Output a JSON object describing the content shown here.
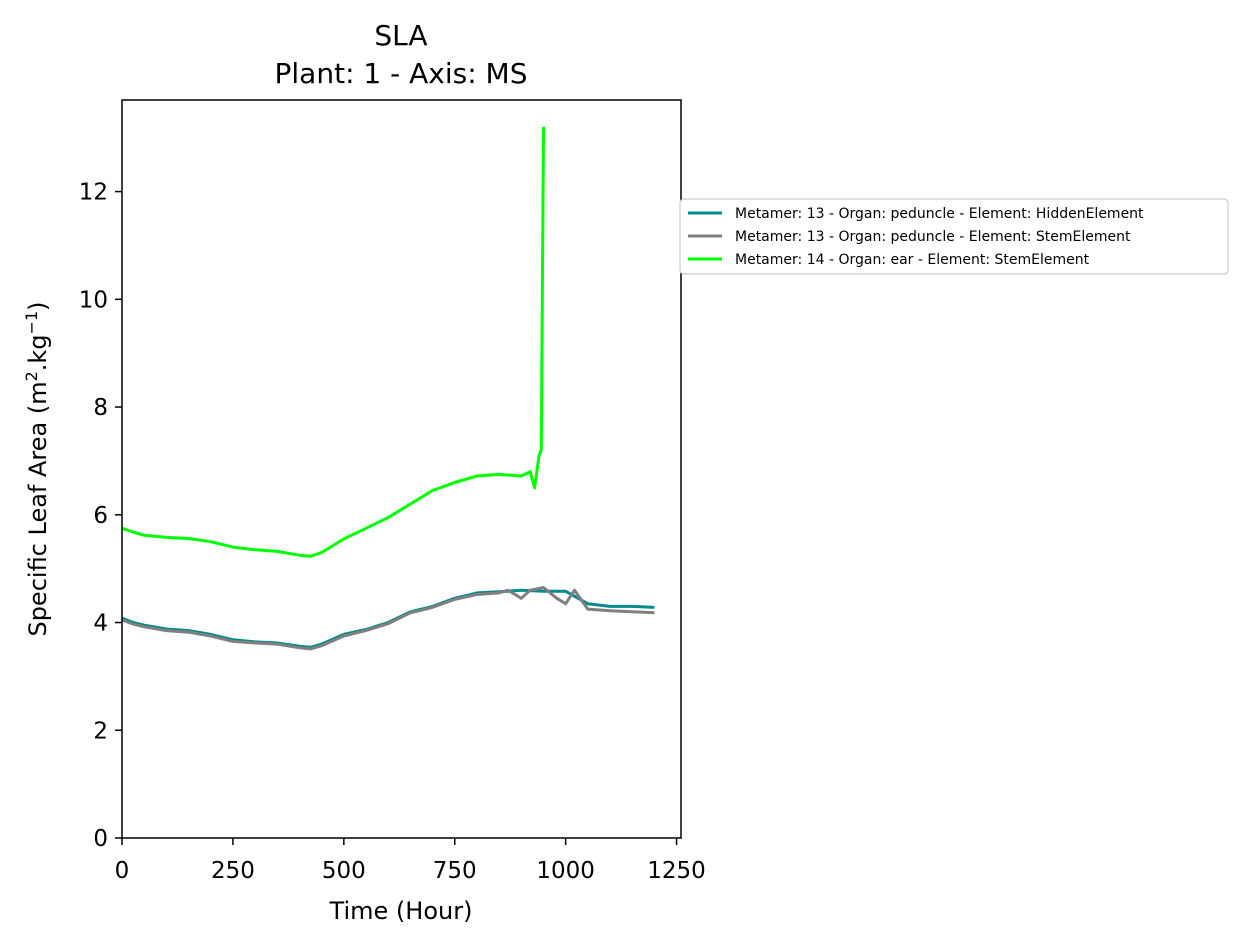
{
  "chart_data": {
    "type": "line",
    "title": "SLA",
    "subtitle": "Plant: 1 - Axis: MS",
    "xlabel": "Time (Hour)",
    "ylabel_main": "Specific Leaf Area (m",
    "ylabel_sup1": "2",
    "ylabel_mid": ".kg",
    "ylabel_sup2": "−1",
    "ylabel_end": ")",
    "xlim": [
      0,
      1260
    ],
    "ylim": [
      0,
      13.7
    ],
    "xticks": [
      0,
      250,
      500,
      750,
      1000,
      1250
    ],
    "yticks": [
      0,
      2,
      4,
      6,
      8,
      10,
      12
    ],
    "grid": false,
    "legend_position": "outside right",
    "series": [
      {
        "name": "Metamer: 13 - Organ: peduncle - Element: HiddenElement",
        "color": "#008b8b",
        "x": [
          0,
          25,
          50,
          100,
          150,
          200,
          250,
          300,
          350,
          400,
          425,
          450,
          500,
          550,
          600,
          650,
          700,
          750,
          800,
          850,
          900,
          950,
          1000,
          1050,
          1100,
          1150,
          1200
        ],
        "y": [
          4.08,
          4.0,
          3.95,
          3.88,
          3.85,
          3.78,
          3.68,
          3.64,
          3.62,
          3.56,
          3.54,
          3.6,
          3.78,
          3.87,
          4.0,
          4.2,
          4.3,
          4.45,
          4.55,
          4.57,
          4.6,
          4.58,
          4.58,
          4.35,
          4.3,
          4.3,
          4.28
        ]
      },
      {
        "name": "Metamer: 13 - Organ: peduncle - Element: StemElement",
        "color": "#808080",
        "x": [
          0,
          25,
          50,
          100,
          150,
          200,
          250,
          300,
          350,
          400,
          425,
          450,
          500,
          550,
          600,
          650,
          700,
          750,
          800,
          850,
          870,
          900,
          920,
          950,
          980,
          1000,
          1020,
          1050,
          1100,
          1150,
          1200
        ],
        "y": [
          4.05,
          3.97,
          3.92,
          3.85,
          3.82,
          3.75,
          3.65,
          3.62,
          3.6,
          3.53,
          3.51,
          3.57,
          3.75,
          3.85,
          3.98,
          4.18,
          4.28,
          4.43,
          4.52,
          4.55,
          4.6,
          4.45,
          4.6,
          4.65,
          4.45,
          4.35,
          4.6,
          4.25,
          4.22,
          4.2,
          4.18
        ]
      },
      {
        "name": "Metamer: 14 - Organ: ear - Element: StemElement",
        "color": "#00ff00",
        "x": [
          0,
          25,
          50,
          100,
          150,
          200,
          250,
          300,
          350,
          400,
          425,
          450,
          500,
          550,
          600,
          650,
          700,
          750,
          800,
          850,
          900,
          920,
          930,
          940,
          945,
          950
        ],
        "y": [
          5.75,
          5.68,
          5.62,
          5.58,
          5.56,
          5.5,
          5.4,
          5.35,
          5.32,
          5.25,
          5.23,
          5.3,
          5.55,
          5.75,
          5.95,
          6.2,
          6.45,
          6.6,
          6.72,
          6.75,
          6.72,
          6.8,
          6.5,
          7.1,
          7.2,
          13.2
        ]
      }
    ]
  }
}
